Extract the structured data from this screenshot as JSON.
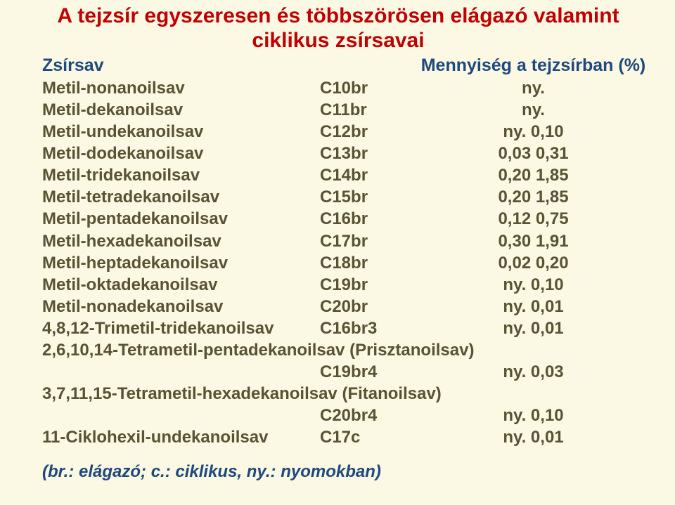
{
  "colors": {
    "background": "#fbf8e4",
    "title": "#c00000",
    "header": "#1f497d",
    "body": "#595334",
    "legend": "#1f497d"
  },
  "typography": {
    "title_fontsize": 30,
    "header_fontsize": 25,
    "body_fontsize": 24,
    "legend_fontsize": 24
  },
  "title_line1": "A tejzsír egyszeresen és többszörösen elágazó valamint",
  "title_line2": "ciklikus zsírsavai",
  "header": {
    "name": "Zsírsav",
    "amount": "Mennyiség a tejzsírban (%)"
  },
  "rows": [
    {
      "name": "Metil-nonanoilsav",
      "code": "C10br",
      "amount": "ny."
    },
    {
      "name": "Metil-dekanoilsav",
      "code": "C11br",
      "amount": "ny."
    },
    {
      "name": "Metil-undekanoilsav",
      "code": "C12br",
      "amount": "ny. 0,10"
    },
    {
      "name": "Metil-dodekanoilsav",
      "code": "C13br",
      "amount": "0,03 0,31"
    },
    {
      "name": "Metil-tridekanoilsav",
      "code": "C14br",
      "amount": "0,20 1,85"
    },
    {
      "name": "Metil-tetradekanoilsav",
      "code": "C15br",
      "amount": "0,20 1,85"
    },
    {
      "name": "Metil-pentadekanoilsav",
      "code": "C16br",
      "amount": "0,12 0,75"
    },
    {
      "name": "Metil-hexadekanoilsav",
      "code": "C17br",
      "amount": "0,30 1,91"
    },
    {
      "name": "Metil-heptadekanoilsav",
      "code": "C18br",
      "amount": "0,02 0,20"
    },
    {
      "name": "Metil-oktadekanoilsav",
      "code": "C19br",
      "amount": "ny. 0,10"
    },
    {
      "name": "Metil-nonadekanoilsav",
      "code": "C20br",
      "amount": "ny. 0,01"
    },
    {
      "name": "4,8,12-Trimetil-tridekanoilsav",
      "code": "C16br3",
      "amount": "ny. 0,01"
    }
  ],
  "wide1": {
    "full": "2,6,10,14-Tetrametil-pentadekanoilsav (Prisztanoilsav)",
    "code": "C19br4",
    "amount": "ny. 0,03"
  },
  "wide2": {
    "full": "3,7,11,15-Tetrametil-hexadekanoilsav (Fitanoilsav)",
    "code": "C20br4",
    "amount": "ny. 0,10"
  },
  "last": {
    "name": "11-Ciklohexil-undekanoilsav",
    "code": "C17c",
    "amount": "ny. 0,01"
  },
  "legend": "(br.: elágazó; c.: ciklikus, ny.: nyomokban)"
}
